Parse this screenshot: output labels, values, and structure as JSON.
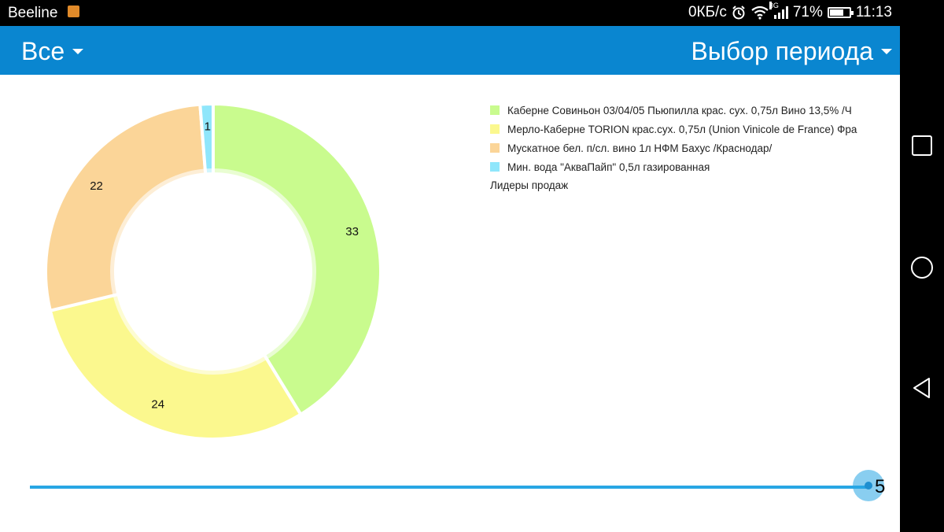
{
  "status_bar": {
    "carrier": "Beeline",
    "speed": "0КБ/с",
    "network": "3G",
    "battery_percent": "71%",
    "battery_level": 0.71,
    "time": "11:13",
    "icons": [
      "notification-icon",
      "alarm-icon",
      "wifi-icon",
      "signal-icon",
      "battery-icon"
    ]
  },
  "app_bar": {
    "left_dropdown": "Все",
    "right_dropdown": "Выбор периода",
    "color": "#0a86d0"
  },
  "chart_data": {
    "type": "pie",
    "donut": true,
    "title": "Лидеры продаж",
    "legend_position": "top-right",
    "slices": [
      {
        "label": "Каберне Совиньон 03/04/05 Пьюпилла крас. сух. 0,75л Вино 13,5% /Ч",
        "value": 33,
        "color": "#c9fb8e"
      },
      {
        "label": "Мерло-Каберне TORION крас.сух. 0,75л (Union Vinicole de France) Фра",
        "value": 24,
        "color": "#fbf88e"
      },
      {
        "label": "Мускатное бел. п/сл. вино 1л НФМ Бахус /Краснодар/",
        "value": 22,
        "color": "#fbd598"
      },
      {
        "label": "Мин. вода \"АкваПайп\" 0,5л газированная",
        "value": 1,
        "color": "#8fe6fb"
      }
    ]
  },
  "slider": {
    "value": "5",
    "fraction": 1.0,
    "color": "#28a6e4"
  },
  "nav_bar": {
    "buttons": [
      "recent-apps-icon",
      "home-icon",
      "back-icon"
    ]
  }
}
